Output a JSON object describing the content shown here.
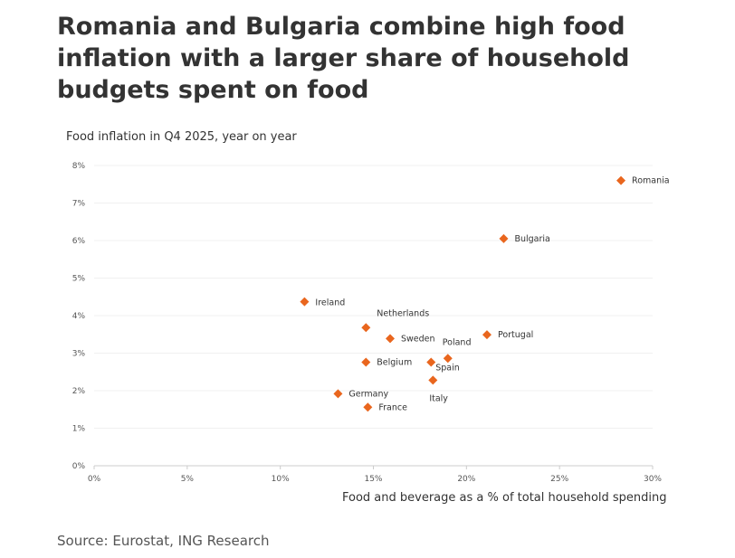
{
  "title": "Romania and Bulgaria combine high food inflation with a larger share of household budgets spent on food",
  "source": "Source: Eurostat, ING Research",
  "chart_data": {
    "type": "scatter",
    "title": "",
    "xlabel": "Food and beverage as a % of total household spending",
    "ylabel": "Food inflation in Q4 2025, year on year",
    "xlim": [
      0,
      30
    ],
    "ylim": [
      0,
      8
    ],
    "xticks": [
      "0%",
      "5%",
      "10%",
      "15%",
      "20%",
      "25%",
      "30%"
    ],
    "yticks": [
      "0%",
      "1%",
      "2%",
      "3%",
      "4%",
      "5%",
      "6%",
      "7%",
      "8%"
    ],
    "grid": "horizontal",
    "marker": "diamond",
    "color": "#e9661e",
    "points": [
      {
        "label": "Romania",
        "x": 28.3,
        "y": 7.6
      },
      {
        "label": "Bulgaria",
        "x": 22.0,
        "y": 6.05
      },
      {
        "label": "Ireland",
        "x": 11.3,
        "y": 4.37
      },
      {
        "label": "Netherlands",
        "x": 14.6,
        "y": 3.68
      },
      {
        "label": "Sweden",
        "x": 15.9,
        "y": 3.39
      },
      {
        "label": "Portugal",
        "x": 21.1,
        "y": 3.49
      },
      {
        "label": "Poland",
        "x": 19.0,
        "y": 2.86
      },
      {
        "label": "Belgium",
        "x": 14.6,
        "y": 2.76
      },
      {
        "label": "Spain",
        "x": 18.1,
        "y": 2.76
      },
      {
        "label": "Italy",
        "x": 18.2,
        "y": 2.28
      },
      {
        "label": "Germany",
        "x": 13.1,
        "y": 1.92
      },
      {
        "label": "France",
        "x": 14.7,
        "y": 1.56
      }
    ]
  }
}
